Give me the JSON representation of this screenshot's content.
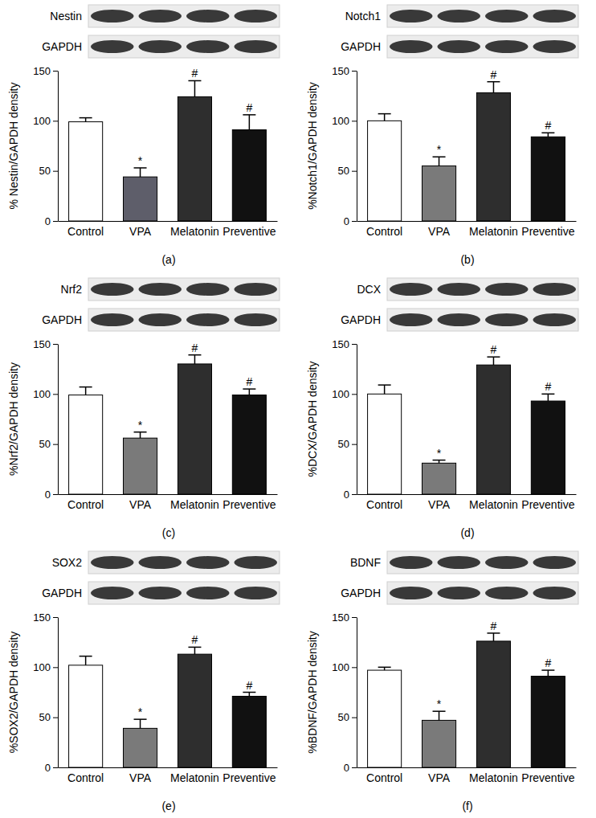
{
  "chart_data": [
    {
      "type": "bar",
      "panel": "(a)",
      "blots": [
        "Nestin",
        "GAPDH"
      ],
      "y_label": "% Nestin/GAPDH density",
      "categories": [
        "Control",
        "VPA",
        "Melatonin",
        "Preventive"
      ],
      "values": [
        99,
        44,
        124,
        91
      ],
      "errors": [
        4,
        9,
        16,
        15
      ],
      "annotations": [
        null,
        "*",
        "#",
        "#"
      ],
      "colors": [
        "#ffffff",
        "#5e5e6a",
        "#2e2e2e",
        "#111111"
      ],
      "ylim": [
        0,
        150
      ],
      "yticks": [
        0,
        50,
        100,
        150
      ]
    },
    {
      "type": "bar",
      "panel": "(b)",
      "blots": [
        "Notch1",
        "GAPDH"
      ],
      "y_label": "%Notch1/GAPDH density",
      "categories": [
        "Control",
        "VPA",
        "Melatonin",
        "Preventive"
      ],
      "values": [
        100,
        55,
        128,
        84
      ],
      "errors": [
        7,
        9,
        11,
        4
      ],
      "annotations": [
        null,
        "*",
        "#",
        "#"
      ],
      "colors": [
        "#ffffff",
        "#7a7a7a",
        "#2e2e2e",
        "#111111"
      ],
      "ylim": [
        0,
        150
      ],
      "yticks": [
        0,
        50,
        100,
        150
      ]
    },
    {
      "type": "bar",
      "panel": "(c)",
      "blots": [
        "Nrf2",
        "GAPDH"
      ],
      "y_label": "%Nrf2/GAPDH density",
      "categories": [
        "Control",
        "VPA",
        "Melatonin",
        "Preventive"
      ],
      "values": [
        99,
        56,
        130,
        99
      ],
      "errors": [
        8,
        6,
        9,
        6
      ],
      "annotations": [
        null,
        "*",
        "#",
        "#"
      ],
      "colors": [
        "#ffffff",
        "#7a7a7a",
        "#2e2e2e",
        "#111111"
      ],
      "ylim": [
        0,
        150
      ],
      "yticks": [
        0,
        50,
        100,
        150
      ]
    },
    {
      "type": "bar",
      "panel": "(d)",
      "blots": [
        "DCX",
        "GAPDH"
      ],
      "y_label": "%DCX/GAPDH density",
      "categories": [
        "Control",
        "VPA",
        "Melatonin",
        "Preventive"
      ],
      "values": [
        100,
        31,
        129,
        93
      ],
      "errors": [
        9,
        3,
        8,
        7
      ],
      "annotations": [
        null,
        "*",
        "#",
        "#"
      ],
      "colors": [
        "#ffffff",
        "#7a7a7a",
        "#2e2e2e",
        "#111111"
      ],
      "ylim": [
        0,
        150
      ],
      "yticks": [
        0,
        50,
        100,
        150
      ]
    },
    {
      "type": "bar",
      "panel": "(e)",
      "blots": [
        "SOX2",
        "GAPDH"
      ],
      "y_label": "%SOX2/GAPDH density",
      "categories": [
        "Control",
        "VPA",
        "Melatonin",
        "Preventive"
      ],
      "values": [
        102,
        39,
        113,
        71
      ],
      "errors": [
        9,
        9,
        7,
        4
      ],
      "annotations": [
        null,
        "*",
        "#",
        "#"
      ],
      "colors": [
        "#ffffff",
        "#7a7a7a",
        "#2e2e2e",
        "#111111"
      ],
      "ylim": [
        0,
        150
      ],
      "yticks": [
        0,
        50,
        100,
        150
      ]
    },
    {
      "type": "bar",
      "panel": "(f)",
      "blots": [
        "BDNF",
        "GAPDH"
      ],
      "y_label": "%BDNF/GAPDH density",
      "categories": [
        "Control",
        "VPA",
        "Melatonin",
        "Preventive"
      ],
      "values": [
        97,
        47,
        126,
        91
      ],
      "errors": [
        3,
        9,
        8,
        6
      ],
      "annotations": [
        null,
        "*",
        "#",
        "#"
      ],
      "colors": [
        "#ffffff",
        "#7a7a7a",
        "#2e2e2e",
        "#111111"
      ],
      "ylim": [
        0,
        150
      ],
      "yticks": [
        0,
        50,
        100,
        150
      ]
    }
  ]
}
